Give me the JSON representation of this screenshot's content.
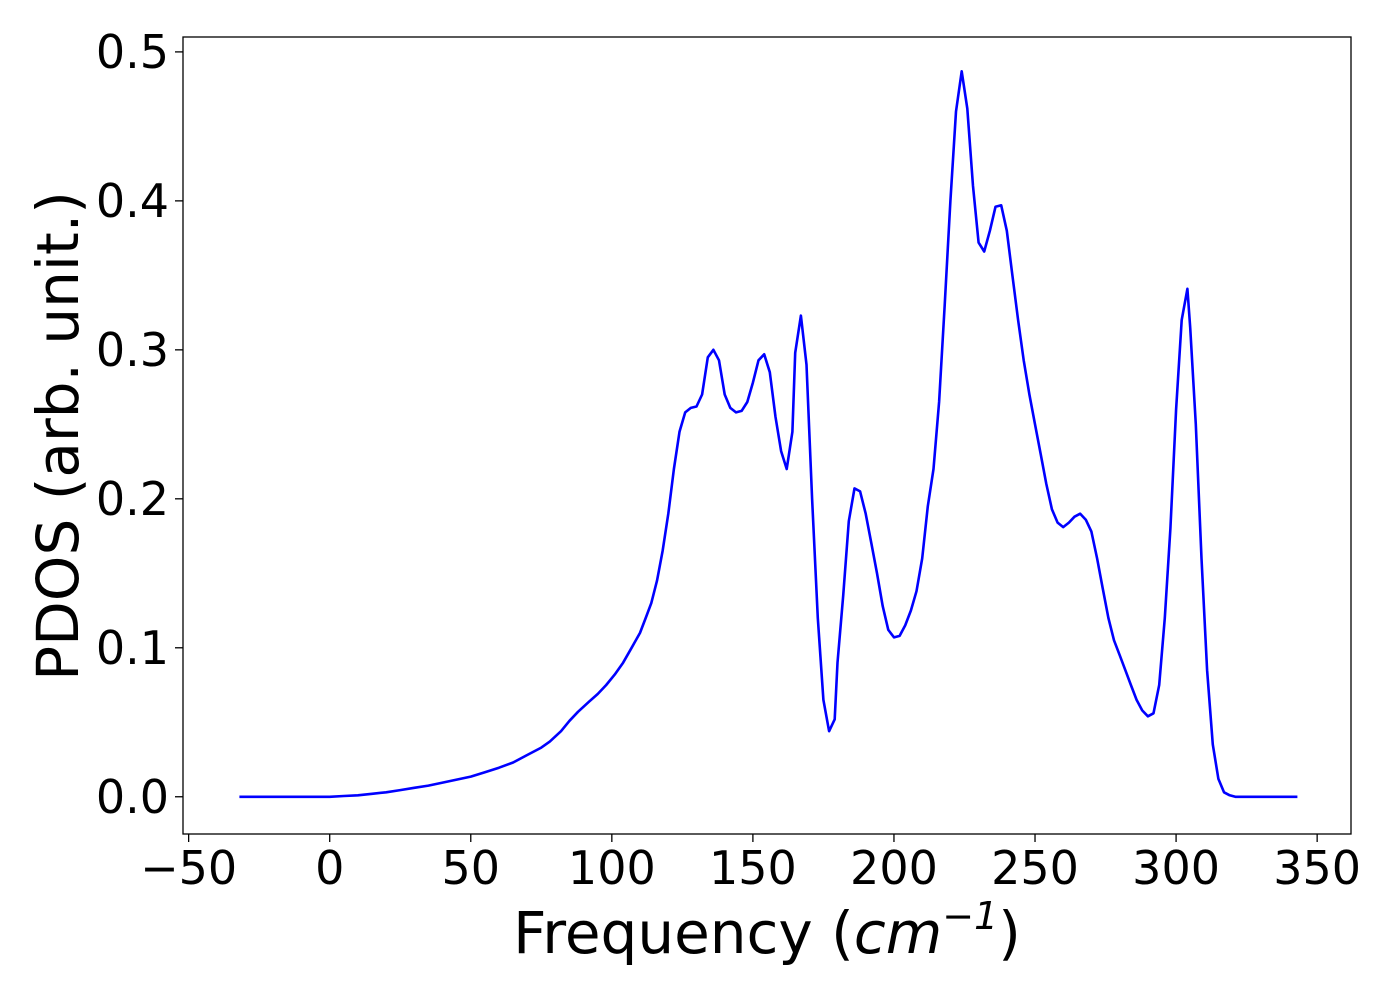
{
  "chart_data": {
    "type": "line",
    "xlabel_prefix": "Frequency (",
    "xlabel_var": "cm",
    "xlabel_exp": "−1",
    "xlabel_suffix": ")",
    "ylabel": "PDOS (arb. unit.)",
    "xlim": [
      -52,
      362
    ],
    "ylim": [
      -0.025,
      0.51
    ],
    "xticks": [
      -50,
      0,
      50,
      100,
      150,
      200,
      250,
      300,
      350
    ],
    "xtick_labels": [
      "−50",
      "0",
      "50",
      "100",
      "150",
      "200",
      "250",
      "300",
      "350"
    ],
    "yticks": [
      0.0,
      0.1,
      0.2,
      0.3,
      0.4,
      0.5
    ],
    "ytick_labels": [
      "0.0",
      "0.1",
      "0.2",
      "0.3",
      "0.4",
      "0.5"
    ],
    "grid": false,
    "color": "#0000ff",
    "series": [
      {
        "x": [
          -32,
          -20,
          -10,
          0,
          5,
          10,
          15,
          20,
          25,
          30,
          35,
          40,
          45,
          50,
          55,
          60,
          65,
          70,
          75,
          78,
          82,
          85,
          88,
          92,
          95,
          98,
          101,
          104,
          107,
          110,
          112,
          114,
          116,
          118,
          120,
          122,
          124,
          126,
          128,
          130,
          132,
          134,
          136,
          138,
          140,
          142,
          144,
          146,
          148,
          150,
          152,
          154,
          156,
          158,
          160,
          162,
          164,
          165,
          167,
          169,
          171,
          173,
          175,
          177,
          179,
          180,
          182,
          184,
          186,
          188,
          190,
          192,
          194,
          196,
          198,
          200,
          202,
          204,
          206,
          208,
          210,
          212,
          214,
          216,
          218,
          220,
          222,
          224,
          226,
          228,
          230,
          232,
          234,
          236,
          238,
          240,
          242,
          244,
          246,
          248,
          250,
          252,
          254,
          256,
          258,
          260,
          262,
          264,
          266,
          268,
          270,
          272,
          274,
          276,
          278,
          280,
          282,
          284,
          286,
          288,
          290,
          292,
          294,
          296,
          298,
          300,
          302,
          304,
          305,
          307,
          309,
          311,
          313,
          315,
          317,
          319,
          321,
          323,
          330,
          343
        ],
        "y": [
          0.0,
          0.0,
          0.0,
          0.0,
          0.0005,
          0.001,
          0.002,
          0.003,
          0.0045,
          0.006,
          0.0075,
          0.0095,
          0.0115,
          0.0135,
          0.0165,
          0.0195,
          0.023,
          0.028,
          0.033,
          0.037,
          0.044,
          0.051,
          0.057,
          0.064,
          0.069,
          0.075,
          0.082,
          0.09,
          0.1,
          0.11,
          0.12,
          0.13,
          0.145,
          0.165,
          0.19,
          0.22,
          0.245,
          0.258,
          0.261,
          0.262,
          0.27,
          0.295,
          0.3,
          0.293,
          0.27,
          0.261,
          0.258,
          0.259,
          0.265,
          0.278,
          0.293,
          0.297,
          0.285,
          0.255,
          0.232,
          0.22,
          0.245,
          0.298,
          0.323,
          0.29,
          0.2,
          0.12,
          0.065,
          0.044,
          0.052,
          0.09,
          0.135,
          0.185,
          0.207,
          0.205,
          0.19,
          0.17,
          0.15,
          0.128,
          0.112,
          0.107,
          0.108,
          0.115,
          0.125,
          0.138,
          0.16,
          0.195,
          0.22,
          0.265,
          0.33,
          0.4,
          0.46,
          0.487,
          0.462,
          0.41,
          0.372,
          0.366,
          0.38,
          0.396,
          0.397,
          0.38,
          0.35,
          0.32,
          0.293,
          0.27,
          0.25,
          0.23,
          0.21,
          0.193,
          0.184,
          0.181,
          0.184,
          0.188,
          0.19,
          0.186,
          0.178,
          0.16,
          0.14,
          0.12,
          0.105,
          0.095,
          0.085,
          0.075,
          0.065,
          0.058,
          0.054,
          0.056,
          0.075,
          0.12,
          0.18,
          0.26,
          0.32,
          0.341,
          0.315,
          0.25,
          0.16,
          0.085,
          0.035,
          0.012,
          0.003,
          0.001,
          0.0,
          0.0,
          0.0,
          0.0
        ]
      }
    ]
  }
}
